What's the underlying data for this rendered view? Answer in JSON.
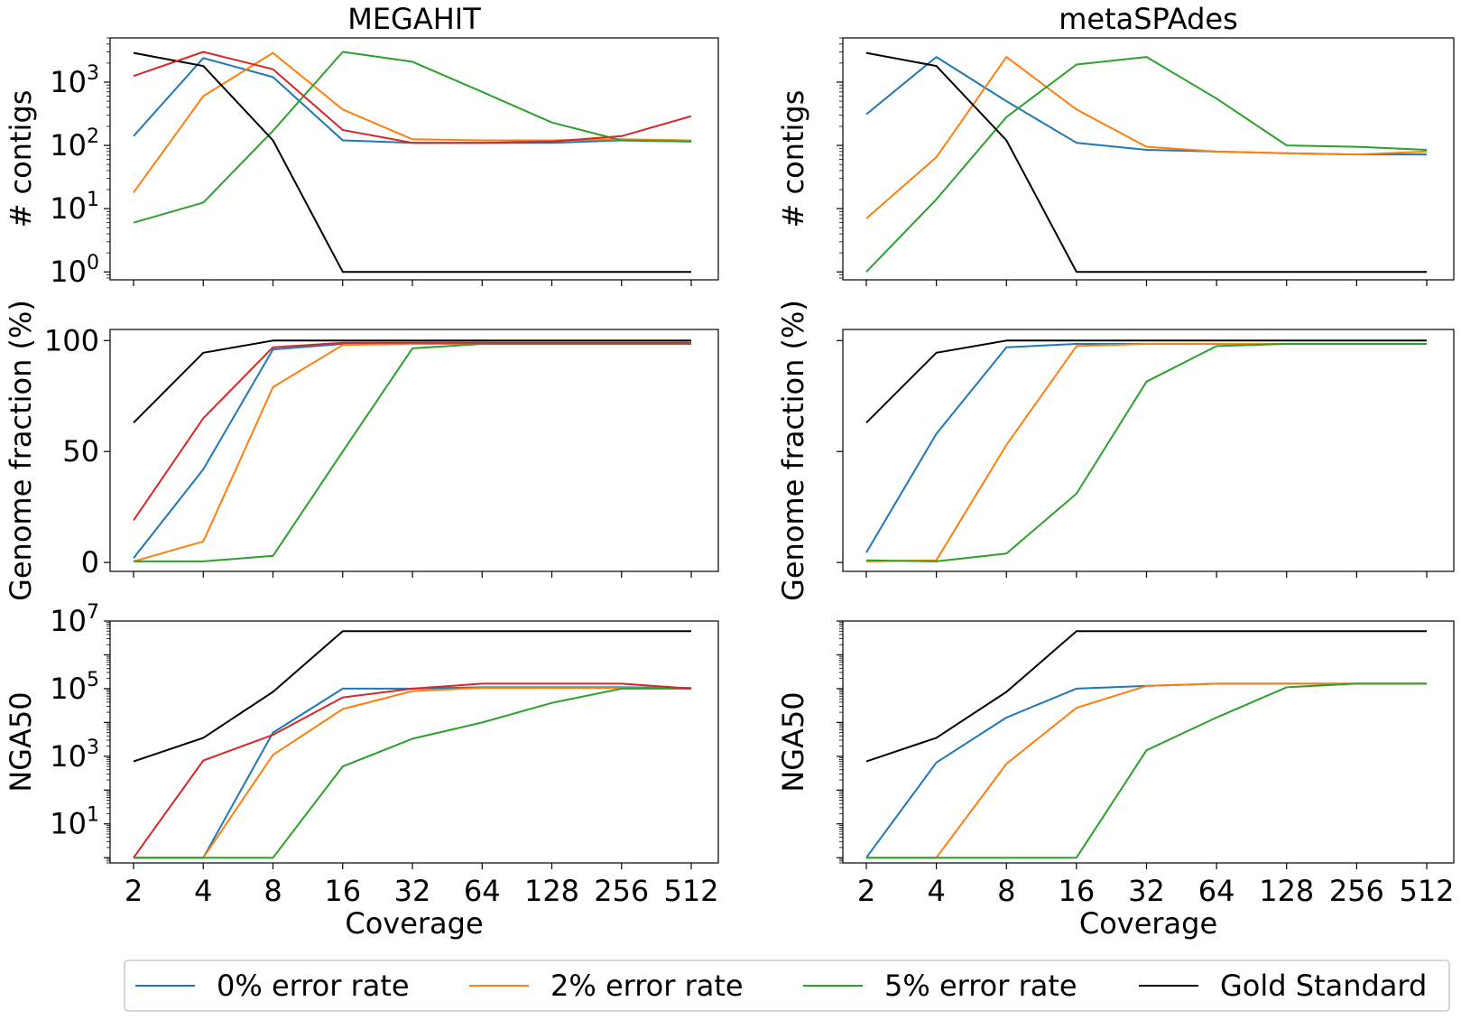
{
  "figure": {
    "colors": {
      "0% error rate": "#1f77b4",
      "2% error rate": "#ff7f0e",
      "5% error rate": "#2ca02c",
      "Gold Standard": "#000000",
      "unlabeled_red": "#d62728"
    },
    "legend": {
      "placement": "bottom-center",
      "entries": [
        "0% error rate",
        "2% error rate",
        "5% error rate",
        "Gold Standard"
      ]
    }
  },
  "chart_data": [
    {
      "type": "line",
      "panel": "megahit-contigs",
      "title": "MEGAHIT",
      "xlabel": "",
      "ylabel": "# contigs",
      "yscale": "log",
      "ylim": [
        0.75,
        5000
      ],
      "x": [
        2,
        4,
        8,
        16,
        32,
        64,
        128,
        256,
        512
      ],
      "xticklabels": [
        "2",
        "4",
        "8",
        "16",
        "32",
        "64",
        "128",
        "256",
        "512"
      ],
      "yticks": [
        {
          "value": 1,
          "base": "10",
          "exp": "0"
        },
        {
          "value": 10,
          "base": "10",
          "exp": "1"
        },
        {
          "value": 100,
          "base": "10",
          "exp": "2"
        },
        {
          "value": 1000,
          "base": "10",
          "exp": "3"
        }
      ],
      "series": [
        {
          "name": "0% error rate",
          "values": [
            140,
            2400,
            1200,
            120,
            110,
            110,
            110,
            120,
            115
          ]
        },
        {
          "name": "2% error rate",
          "values": [
            18,
            600,
            2900,
            370,
            125,
            120,
            120,
            125,
            120
          ]
        },
        {
          "name": "5% error rate",
          "values": [
            6,
            12.5,
            170,
            3000,
            2100,
            700,
            230,
            120,
            115
          ]
        },
        {
          "name": "Gold Standard",
          "values": [
            2900,
            1800,
            120,
            1,
            1,
            1,
            1,
            1,
            1
          ]
        },
        {
          "values": [
            1250,
            3000,
            1600,
            175,
            110,
            110,
            115,
            140,
            290
          ]
        }
      ]
    },
    {
      "type": "line",
      "panel": "metaspades-contigs",
      "title": "metaSPAdes",
      "xlabel": "",
      "ylabel": "# contigs",
      "yscale": "log",
      "ylim": [
        0.75,
        5000
      ],
      "x": [
        2,
        4,
        8,
        16,
        32,
        64,
        128,
        256,
        512
      ],
      "xticklabels": [
        "2",
        "4",
        "8",
        "16",
        "32",
        "64",
        "128",
        "256",
        "512"
      ],
      "yticks": [],
      "series": [
        {
          "name": "0% error rate",
          "values": [
            310,
            2500,
            500,
            110,
            85,
            80,
            75,
            72,
            72
          ]
        },
        {
          "name": "2% error rate",
          "values": [
            7,
            65,
            2500,
            370,
            95,
            80,
            75,
            72,
            80
          ]
        },
        {
          "name": "5% error rate",
          "values": [
            1,
            14,
            280,
            1900,
            2500,
            550,
            100,
            95,
            85
          ]
        },
        {
          "name": "Gold Standard",
          "values": [
            2900,
            1800,
            120,
            1,
            1,
            1,
            1,
            1,
            1
          ]
        }
      ]
    },
    {
      "type": "line",
      "panel": "megahit-genome-fraction",
      "title": "",
      "xlabel": "",
      "ylabel": "Genome fraction (%)",
      "yscale": "linear",
      "ylim": [
        -4,
        105
      ],
      "x": [
        2,
        4,
        8,
        16,
        32,
        64,
        128,
        256,
        512
      ],
      "xticklabels": [
        "2",
        "4",
        "8",
        "16",
        "32",
        "64",
        "128",
        "256",
        "512"
      ],
      "yticks": [
        {
          "value": 0,
          "label": "0"
        },
        {
          "value": 50,
          "label": "50"
        },
        {
          "value": 100,
          "label": "100"
        }
      ],
      "series": [
        {
          "name": "0% error rate",
          "values": [
            2,
            42,
            96,
            98.5,
            99,
            99,
            99,
            99,
            99
          ]
        },
        {
          "name": "2% error rate",
          "values": [
            0.5,
            9.5,
            79,
            98,
            98.5,
            98.5,
            98.5,
            98.5,
            98.5
          ]
        },
        {
          "name": "5% error rate",
          "values": [
            0.5,
            0.5,
            3,
            50,
            96.5,
            98.5,
            98.5,
            98.5,
            98.5
          ]
        },
        {
          "name": "Gold Standard",
          "values": [
            63,
            94.5,
            100,
            100,
            100,
            100,
            100,
            100,
            100
          ]
        },
        {
          "values": [
            19,
            65,
            97,
            99,
            99,
            99,
            99,
            99,
            99
          ]
        }
      ]
    },
    {
      "type": "line",
      "panel": "metaspades-genome-fraction",
      "title": "",
      "xlabel": "",
      "ylabel": "Genome fraction (%)",
      "yscale": "linear",
      "ylim": [
        -4,
        105
      ],
      "x": [
        2,
        4,
        8,
        16,
        32,
        64,
        128,
        256,
        512
      ],
      "xticklabels": [
        "2",
        "4",
        "8",
        "16",
        "32",
        "64",
        "128",
        "256",
        "512"
      ],
      "yticks": [],
      "series": [
        {
          "name": "0% error rate",
          "values": [
            4.5,
            58,
            97,
            98.5,
            98.5,
            98.5,
            98.5,
            98.5,
            98.5
          ]
        },
        {
          "name": "2% error rate",
          "values": [
            0.5,
            1,
            53,
            97.5,
            98.5,
            98.5,
            98.5,
            98.5,
            98.5
          ]
        },
        {
          "name": "5% error rate",
          "values": [
            1,
            0.5,
            4,
            31,
            81.5,
            97.5,
            98.5,
            98.5,
            98.5
          ]
        },
        {
          "name": "Gold Standard",
          "values": [
            63,
            94.5,
            100,
            100,
            100,
            100,
            100,
            100,
            100
          ]
        }
      ]
    },
    {
      "type": "line",
      "panel": "megahit-nga50",
      "title": "",
      "xlabel": "Coverage",
      "ylabel": "NGA50",
      "yscale": "log",
      "ylim": [
        0.7,
        10000000
      ],
      "x": [
        2,
        4,
        8,
        16,
        32,
        64,
        128,
        256,
        512
      ],
      "xticklabels": [
        "2",
        "4",
        "8",
        "16",
        "32",
        "64",
        "128",
        "256",
        "512"
      ],
      "yticks": [
        {
          "value": 10,
          "base": "10",
          "exp": "1"
        },
        {
          "value": 1000,
          "base": "10",
          "exp": "3"
        },
        {
          "value": 100000,
          "base": "10",
          "exp": "5"
        },
        {
          "value": 10000000,
          "base": "10",
          "exp": "7"
        }
      ],
      "series": [
        {
          "name": "0% error rate",
          "values": [
            1,
            1,
            5000,
            100000,
            100000,
            110000,
            110000,
            110000,
            105000
          ]
        },
        {
          "name": "2% error rate",
          "values": [
            1,
            1,
            1100,
            25000,
            85000,
            105000,
            105000,
            105000,
            100000
          ]
        },
        {
          "name": "5% error rate",
          "values": [
            1,
            1,
            1,
            500,
            3300,
            10000,
            38000,
            100000,
            100000
          ]
        },
        {
          "name": "Gold Standard",
          "values": [
            700,
            3500,
            80000,
            5000000,
            5000000,
            5000000,
            5000000,
            5000000,
            5000000
          ]
        },
        {
          "values": [
            1,
            750,
            4300,
            55000,
            100000,
            140000,
            140000,
            140000,
            100000
          ]
        }
      ]
    },
    {
      "type": "line",
      "panel": "metaspades-nga50",
      "title": "",
      "xlabel": "Coverage",
      "ylabel": "NGA50",
      "yscale": "log",
      "ylim": [
        0.7,
        10000000
      ],
      "x": [
        2,
        4,
        8,
        16,
        32,
        64,
        128,
        256,
        512
      ],
      "xticklabels": [
        "2",
        "4",
        "8",
        "16",
        "32",
        "64",
        "128",
        "256",
        "512"
      ],
      "yticks": [],
      "series": [
        {
          "name": "0% error rate",
          "values": [
            1,
            650,
            14000,
            100000,
            120000,
            140000,
            140000,
            140000,
            140000
          ]
        },
        {
          "name": "2% error rate",
          "values": [
            1,
            1,
            600,
            27000,
            120000,
            140000,
            140000,
            140000,
            140000
          ]
        },
        {
          "name": "5% error rate",
          "values": [
            1,
            1,
            1,
            1,
            1500,
            14000,
            110000,
            140000,
            140000
          ]
        },
        {
          "name": "Gold Standard",
          "values": [
            700,
            3500,
            80000,
            5000000,
            5000000,
            5000000,
            5000000,
            5000000,
            5000000
          ]
        }
      ]
    }
  ]
}
